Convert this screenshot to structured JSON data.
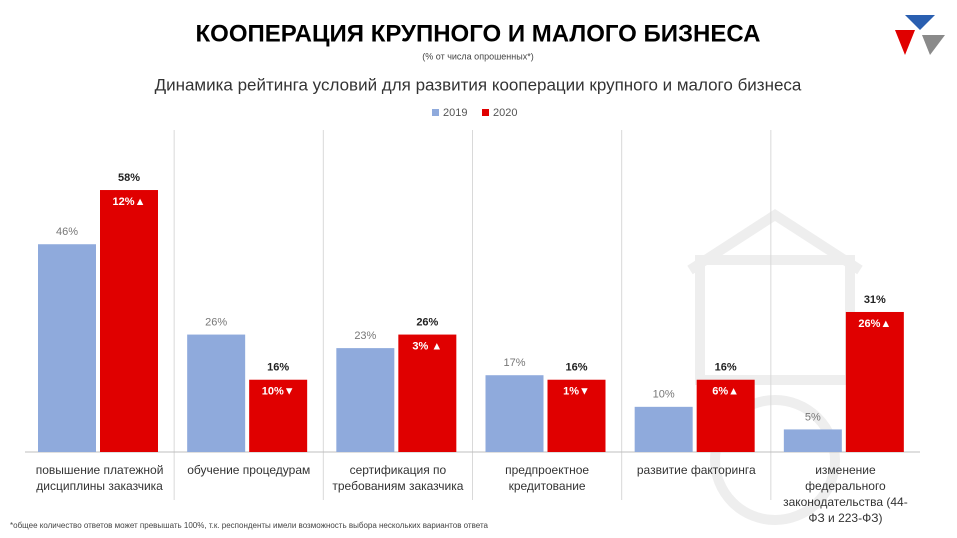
{
  "chart_data": {
    "type": "bar",
    "title": "КООПЕРАЦИЯ КРУПНОГО И МАЛОГО БИЗНЕСА",
    "subtitle": "(% от числа опрошенных*)",
    "chart_title": "Динамика рейтинга условий для развития кооперации крупного и малого бизнеса",
    "footnote": "*общее количество ответов может превышать 100%, т.к. респонденты имели возможность выбора нескольких вариантов ответа",
    "categories": [
      "повышение платежной дисциплины заказчика",
      "обучение процедурам",
      "сертификация по требованиям заказчика",
      "предпроектное кредитование",
      "развитие факторинга",
      "изменение федерального законодательства (44-ФЗ и 223-ФЗ)"
    ],
    "series": [
      {
        "name": "2019",
        "color": "#8faadc",
        "values": [
          46,
          26,
          23,
          17,
          10,
          5
        ],
        "value_labels": [
          "46%",
          "26%",
          "23%",
          "17%",
          "10%",
          "5%"
        ]
      },
      {
        "name": "2020",
        "color": "#e00000",
        "values": [
          58,
          16,
          26,
          16,
          16,
          31
        ],
        "value_labels": [
          "58%",
          "16%",
          "26%",
          "16%",
          "16%",
          "31%"
        ],
        "annotations": [
          "12%▲",
          "10%▼",
          "3% ▲",
          "1%▼",
          "6%▲",
          "26%▲"
        ]
      }
    ],
    "ylim": [
      0,
      60
    ],
    "legend": "top"
  }
}
